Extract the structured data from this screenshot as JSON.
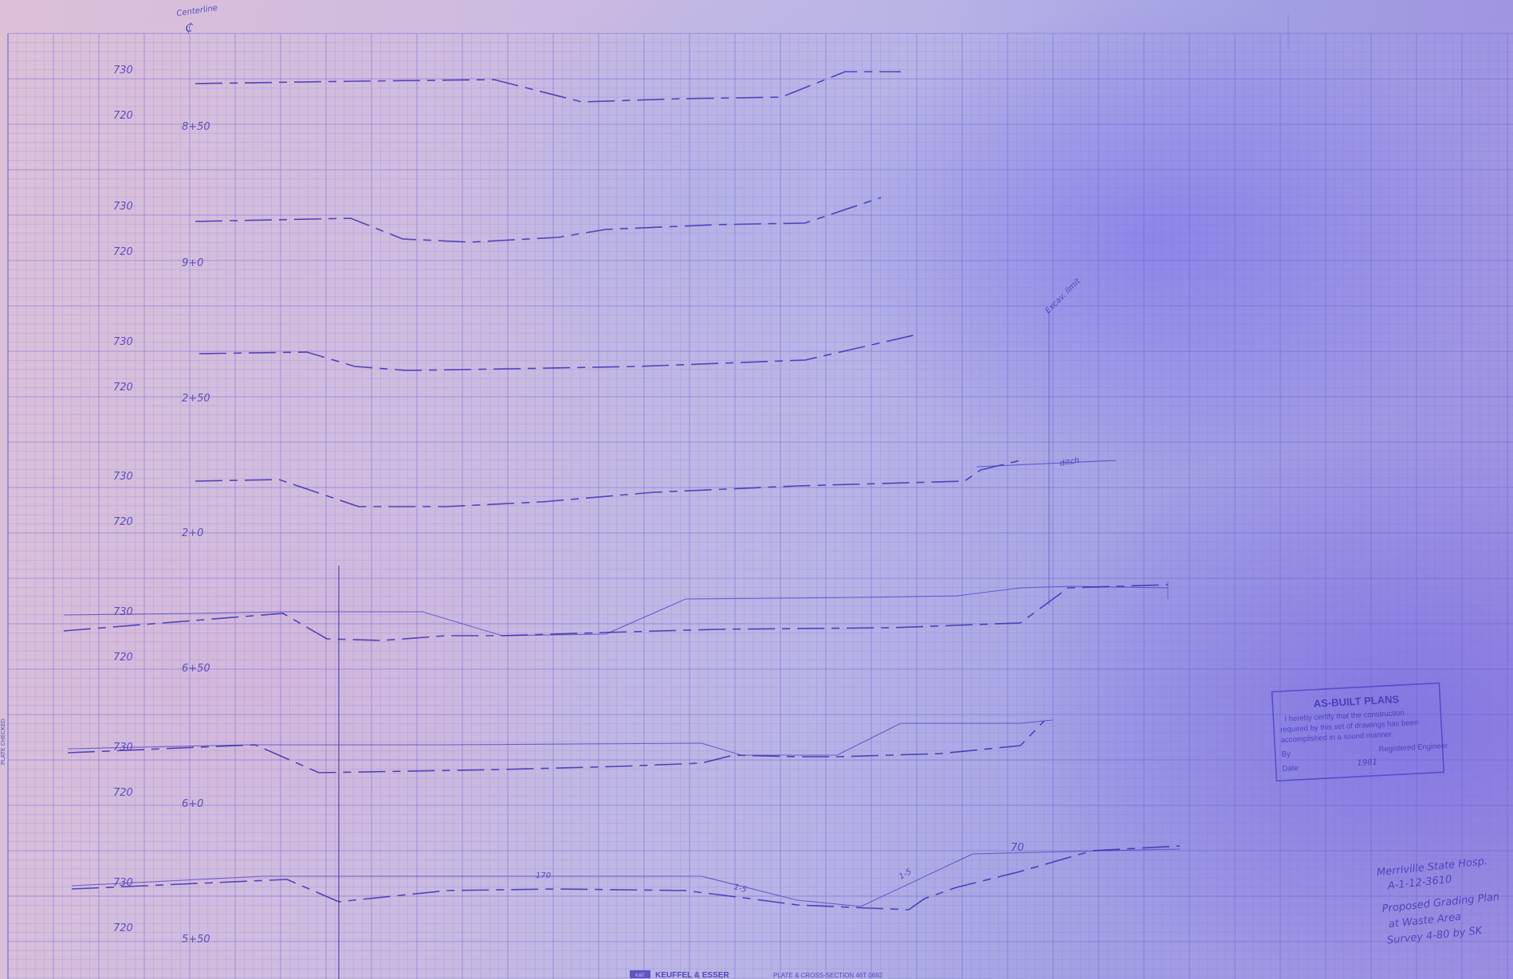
{
  "header": {
    "centerline_note": "Centerline",
    "centerline_symbol": "₵"
  },
  "profiles": [
    {
      "station": "8+50",
      "elev_upper": "730",
      "elev_lower": "720",
      "label_left": "",
      "label_right": "",
      "annotation": ""
    },
    {
      "station": "9+0",
      "elev_upper": "730",
      "elev_lower": "720",
      "label_left": "",
      "label_right": "",
      "annotation": ""
    },
    {
      "station": "2+50",
      "elev_upper": "730",
      "elev_lower": "720",
      "label_left": "",
      "label_right": "",
      "annotation": ""
    },
    {
      "station": "2+0",
      "elev_upper": "730",
      "elev_lower": "720",
      "label_left": "",
      "label_right": "",
      "annotation": "ditch"
    },
    {
      "station": "6+50",
      "elev_upper": "730",
      "elev_lower": "720",
      "label_left": "",
      "label_right": "",
      "annotation": ""
    },
    {
      "station": "6+0",
      "elev_upper": "730",
      "elev_lower": "720",
      "label_left": "",
      "label_right": "",
      "annotation": ""
    },
    {
      "station": "5+50",
      "elev_upper": "730",
      "elev_lower": "720",
      "label_left": "",
      "label_right": "",
      "annotation": ""
    }
  ],
  "notes": {
    "field_note": "Excav. limit",
    "note_70": "70",
    "note_170": "170",
    "note_1_5": "1-5",
    "note_1_3": "1-5"
  },
  "stamp": {
    "title": "AS-BUILT PLANS",
    "line1": "I hereby certify that the construction",
    "line2": "required by this set of drawings has been",
    "line3": "accomplished in a sound manner.",
    "by_label": "By",
    "by_value": "",
    "engineer_label": "Registered Engineer",
    "date_label": "Date",
    "date_value": "1981"
  },
  "title_block": {
    "line1": "Merriville State Hosp.",
    "line2": "A-1-12-3610",
    "line3": "Proposed Grading Plan",
    "line4": "at Waste Area",
    "line5": "Survey 4-80 by SK"
  },
  "footer": {
    "brand": "KEUFFEL & ESSER",
    "text": "PLATE & CROSS-SECTION 46T 0692",
    "logo": "K&E"
  },
  "side_label": "PLATE CHECKED"
}
